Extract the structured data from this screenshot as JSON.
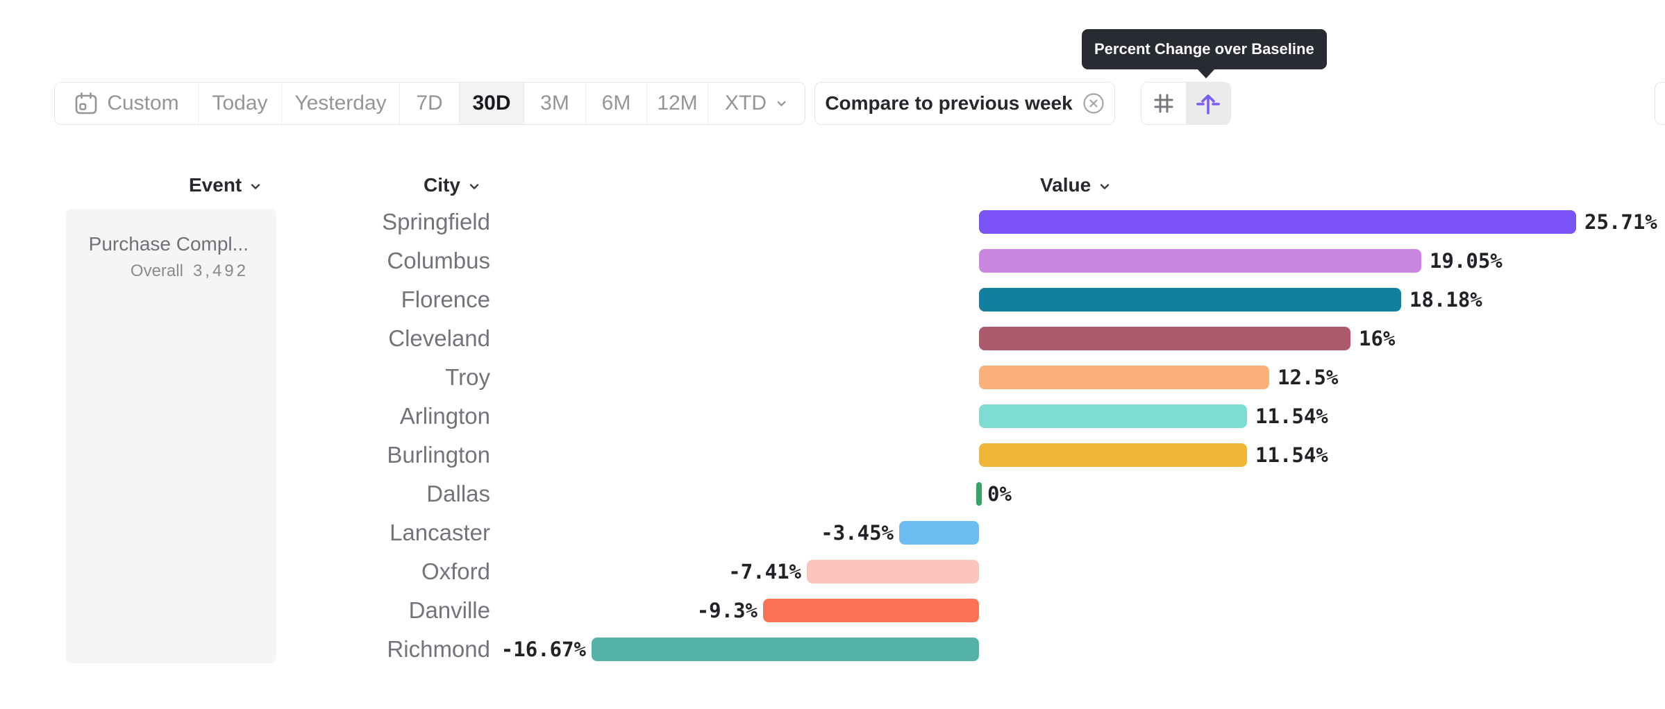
{
  "tooltip": {
    "text": "Percent Change over Baseline"
  },
  "toolbar": {
    "ranges": [
      {
        "label": "Custom",
        "icon": "calendar-icon",
        "selected": false
      },
      {
        "label": "Today",
        "selected": false
      },
      {
        "label": "Yesterday",
        "selected": false
      },
      {
        "label": "7D",
        "selected": false
      },
      {
        "label": "30D",
        "selected": true
      },
      {
        "label": "3M",
        "selected": false
      },
      {
        "label": "6M",
        "selected": false
      },
      {
        "label": "12M",
        "selected": false
      },
      {
        "label": "XTD",
        "selected": false,
        "chevron": true
      }
    ],
    "compare": {
      "label": "Compare to previous week",
      "icon": "close-circle-icon"
    },
    "view_toggle": [
      {
        "name": "absolute-values",
        "icon": "hash-icon",
        "selected": false
      },
      {
        "name": "percent-change-over-baseline",
        "icon": "baseline-arrow-icon",
        "selected": true
      }
    ]
  },
  "columns": [
    {
      "label": "Event"
    },
    {
      "label": "City"
    },
    {
      "label": "Value"
    }
  ],
  "event_panel": {
    "event_name": "Purchase Compl...",
    "metric_label": "Overall",
    "metric_value": "3,492"
  },
  "chart_data": {
    "type": "bar",
    "orientation": "horizontal",
    "title": "Percent Change over Baseline",
    "unit": "%",
    "baseline": 0,
    "xlim": [
      -16.67,
      25.71
    ],
    "grid": false,
    "categories": [
      "Springfield",
      "Columbus",
      "Florence",
      "Cleveland",
      "Troy",
      "Arlington",
      "Burlington",
      "Dallas",
      "Lancaster",
      "Oxford",
      "Danville",
      "Richmond"
    ],
    "values": [
      25.71,
      19.05,
      18.18,
      16,
      12.5,
      11.54,
      11.54,
      0,
      -3.45,
      -7.41,
      -9.3,
      -16.67
    ],
    "labels": [
      "25.71%",
      "19.05%",
      "18.18%",
      "16%",
      "12.5%",
      "11.54%",
      "11.54%",
      "0%",
      "-3.45%",
      "-7.41%",
      "-9.3%",
      "-16.67%"
    ],
    "colors": [
      "#7b52f5",
      "#c985e0",
      "#117f9f",
      "#ad5a6d",
      "#fdb07a",
      "#7fdcd2",
      "#f0b437",
      "#36a368",
      "#6cbdf2",
      "#fbc5bd",
      "#fa7156",
      "#55b2a6"
    ]
  },
  "colors": {
    "accent_purple": "#7a5bf7",
    "tooltip_bg": "#282b31",
    "selected_segment_bg": "#f3f3f4",
    "zero_tick_green": "#36a368",
    "panel_bg": "#f5f5f6"
  }
}
